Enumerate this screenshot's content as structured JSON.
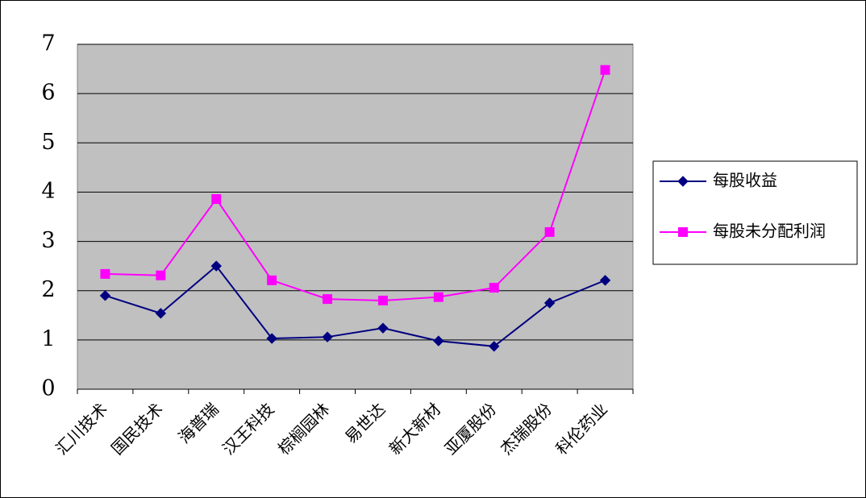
{
  "chart_data": {
    "type": "line",
    "categories": [
      "汇川技术",
      "国民技术",
      "海普瑞",
      "汉王科技",
      "棕榈园林",
      "易世达",
      "新大新材",
      "亚厦股份",
      "杰瑞股份",
      "科伦药业"
    ],
    "series": [
      {
        "name": "每股收益",
        "color": "#000080",
        "marker": "diamond",
        "values": [
          1.9,
          1.54,
          2.5,
          1.03,
          1.06,
          1.24,
          0.98,
          0.87,
          1.75,
          2.21
        ]
      },
      {
        "name": "每股未分配利润",
        "color": "#ff00ff",
        "marker": "square",
        "values": [
          2.34,
          2.31,
          3.86,
          2.21,
          1.83,
          1.8,
          1.87,
          2.06,
          3.19,
          6.48
        ]
      }
    ],
    "ylim": [
      0,
      7
    ],
    "yticks": [
      0,
      1,
      2,
      3,
      4,
      5,
      6,
      7
    ],
    "grid": true,
    "legend": "right"
  }
}
